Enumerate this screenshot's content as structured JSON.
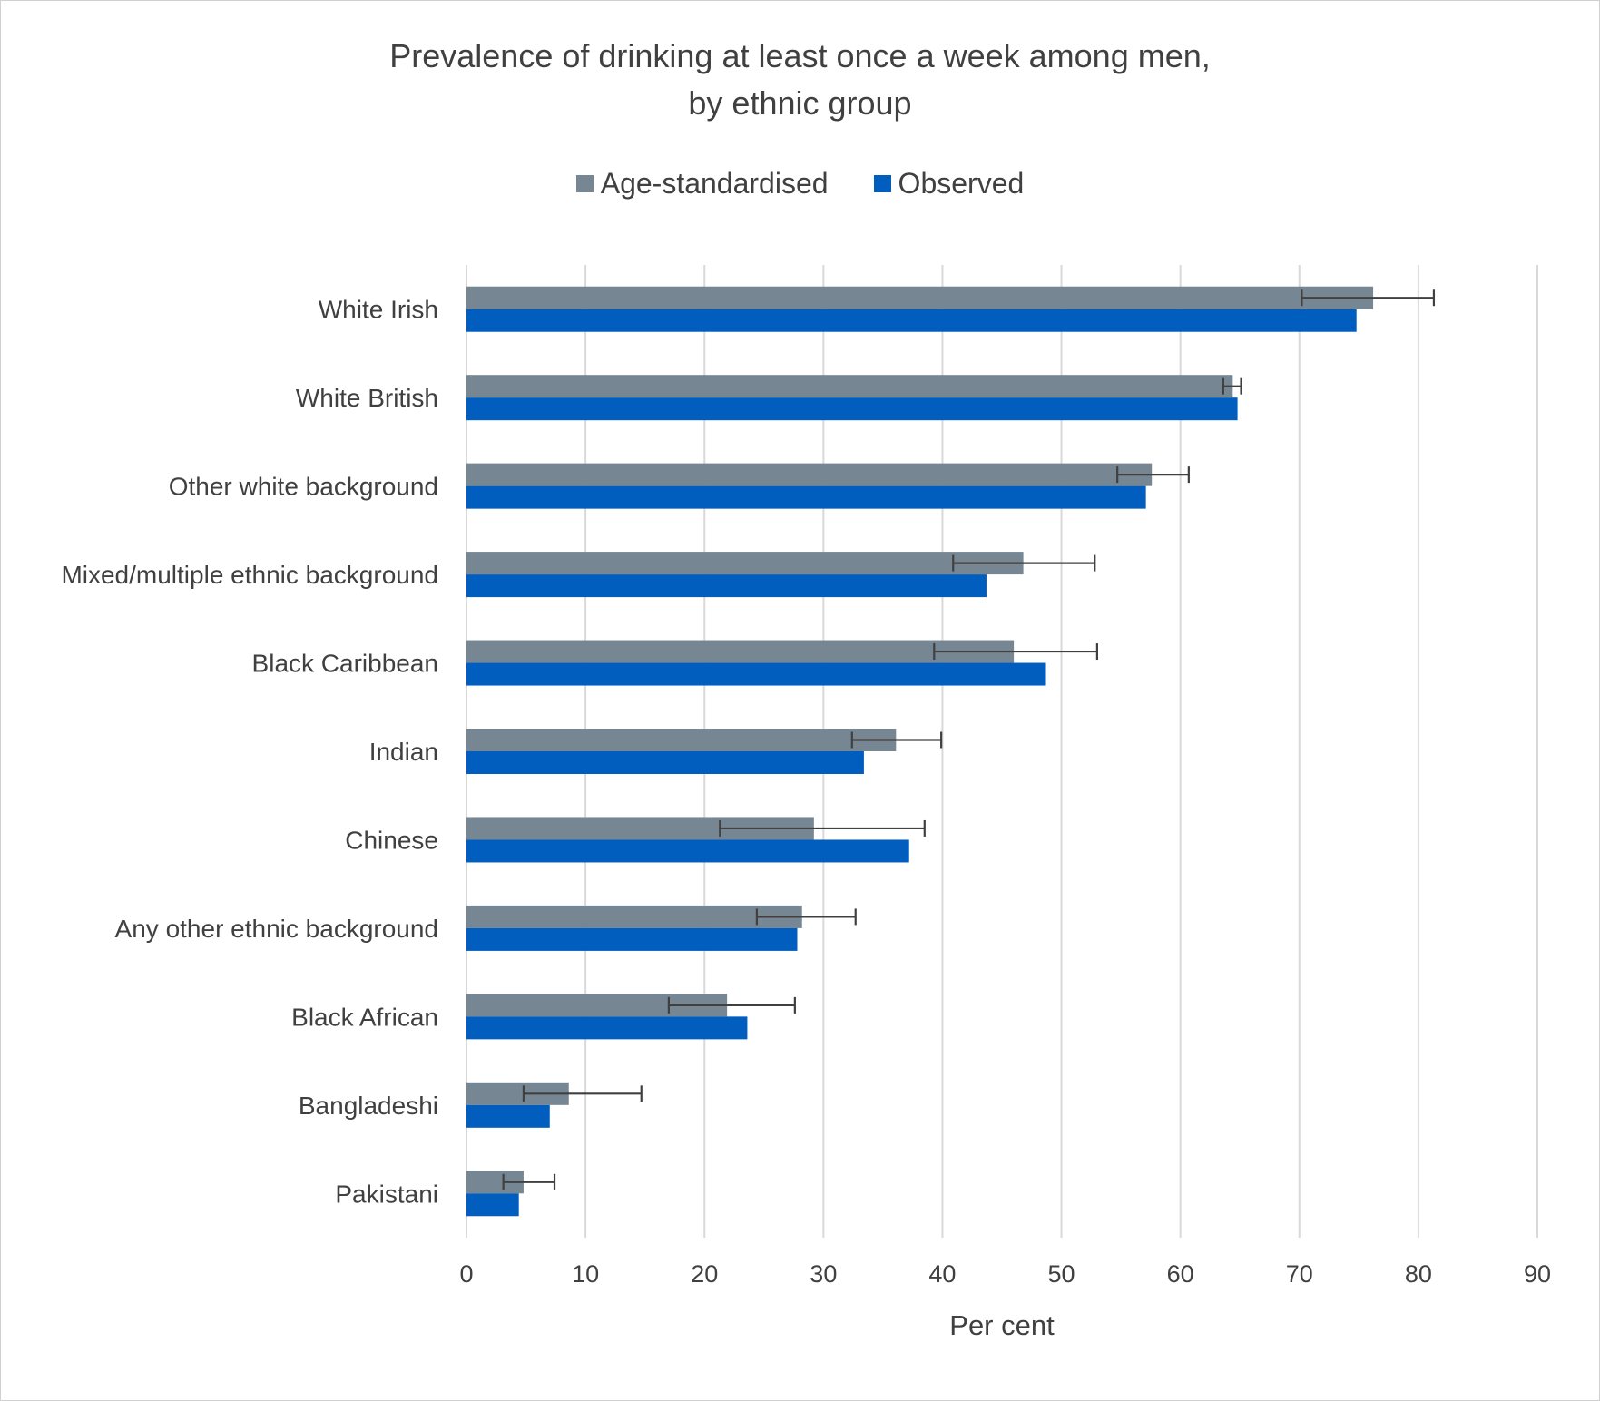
{
  "chart_data": {
    "type": "bar",
    "orientation": "horizontal",
    "title_lines": [
      "Prevalence of drinking at least once a week among men,",
      "by ethnic group"
    ],
    "xlabel": "Per cent",
    "ylabel": "",
    "xlim": [
      0,
      90
    ],
    "xticks": [
      "0",
      "10",
      "20",
      "30",
      "40",
      "50",
      "60",
      "70",
      "80",
      "90"
    ],
    "grid": "vertical",
    "legend_position": "top",
    "categories": [
      "White Irish",
      "White British",
      "Other white background",
      "Mixed/multiple ethnic background",
      "Black Caribbean",
      "Indian",
      "Chinese",
      "Any other ethnic background",
      "Black African",
      "Bangladeshi",
      "Pakistani"
    ],
    "series": [
      {
        "name": "Age-standardised",
        "color": "#768693",
        "values": [
          76.2,
          64.4,
          57.6,
          46.8,
          46.0,
          36.1,
          29.2,
          28.2,
          21.9,
          8.6,
          4.8
        ],
        "error_low": [
          70.2,
          63.6,
          54.7,
          40.9,
          39.3,
          32.4,
          21.3,
          24.4,
          17.0,
          4.8,
          3.1
        ],
        "error_high": [
          81.3,
          65.1,
          60.7,
          52.8,
          53.0,
          39.9,
          38.5,
          32.7,
          27.6,
          14.7,
          7.4
        ]
      },
      {
        "name": "Observed",
        "color": "#015EBE",
        "values": [
          74.8,
          64.8,
          57.1,
          43.7,
          48.7,
          33.4,
          37.2,
          27.8,
          23.6,
          7.0,
          4.4
        ]
      }
    ]
  }
}
